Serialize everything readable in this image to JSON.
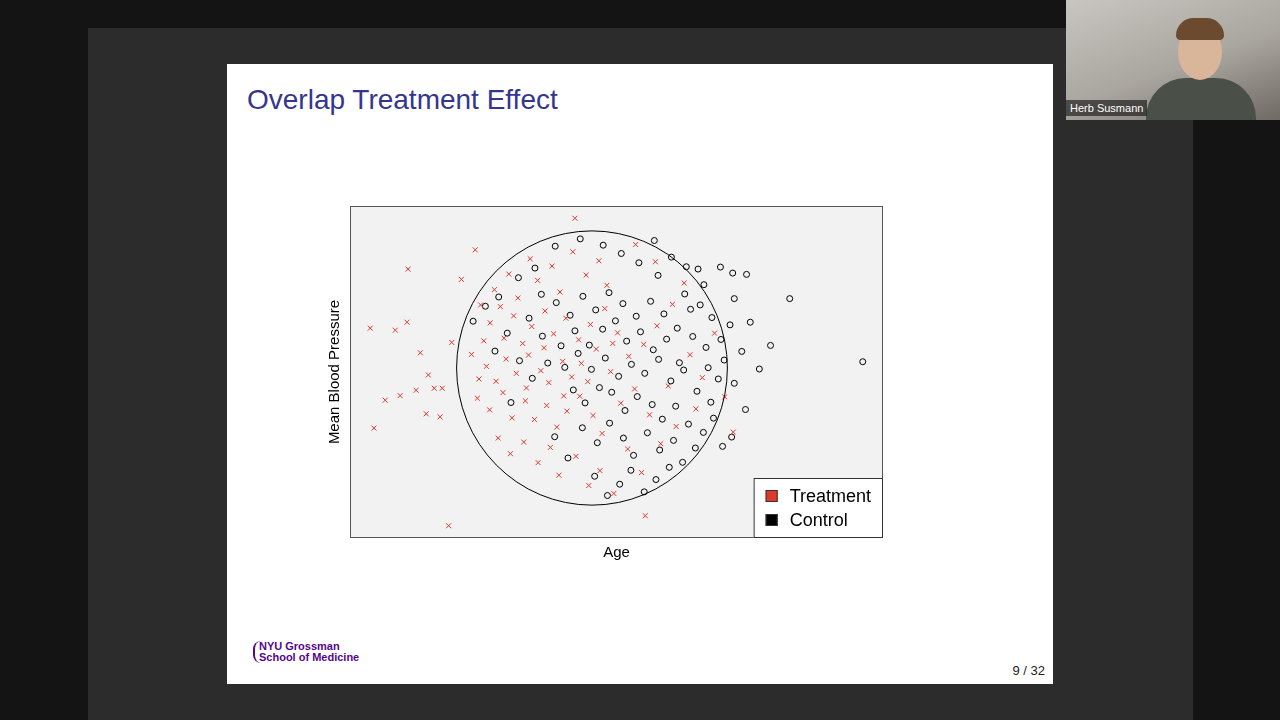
{
  "slide": {
    "title": "Overlap Treatment Effect",
    "page": "9 / 32",
    "logo": [
      "NYU Grossman",
      "School of Medicine"
    ]
  },
  "presenter": {
    "name": "Herb Susmann"
  },
  "chart_data": {
    "type": "scatter",
    "x_label": "Age",
    "y_label": "Mean Blood Pressure",
    "xlim": [
      0,
      100
    ],
    "ylim": [
      0,
      100
    ],
    "tick_labels": false,
    "grid": false,
    "legend": "bottom right",
    "overlap_region": {
      "center": [
        45.4,
        51.2
      ],
      "x_radius": 25.4,
      "y_radius": 41.3
    },
    "series": [
      {
        "name": "Treatment",
        "color": "#e0382b",
        "marker": "x",
        "x": [
          3.8,
          10.9,
          23.5,
          42.2,
          4.5,
          18.5,
          55.4,
          9.4,
          12.4,
          14.3,
          15.8,
          10.7,
          16.9,
          8.5,
          20.9,
          14.7,
          17.3,
          6.6,
          13.2,
          19.1,
          24.5,
          27.1,
          29.8,
          31.5,
          33.8,
          35.2,
          37.9,
          39.4,
          41.8,
          44.3,
          46.7,
          48.2,
          26.3,
          28.9,
          30.7,
          32.4,
          34.1,
          36.6,
          38.2,
          40.5,
          42.9,
          45.1,
          47.8,
          50.2,
          22.8,
          25.6,
          27.4,
          29.3,
          31.2,
          33.5,
          35.8,
          37.3,
          39.9,
          41.6,
          43.4,
          46.2,
          48.9,
          52.3,
          55.1,
          57.6,
          23.9,
          26.2,
          28.7,
          30.4,
          32.9,
          34.6,
          36.9,
          38.8,
          40.7,
          43.1,
          45.6,
          47.3,
          50.8,
          53.4,
          56.2,
          59.7,
          27.8,
          30.1,
          32.6,
          35.3,
          37.6,
          39.2,
          42.4,
          44.8,
          46.9,
          49.5,
          52.1,
          54.7,
          58.3,
          61.2,
          63.8,
          66.1,
          68.4,
          64.9,
          60.5,
          62.7,
          57.3,
          53.6,
          71.9,
          70.3,
          25.1,
          28.2,
          33.1,
          36.4,
          40.1,
          44.6,
          49.3,
          24.2
        ],
        "values": [
          63.2,
          81,
          86.8,
          96.3,
          33.1,
          3.7,
          6.7,
          42.9,
          44.5,
          37.4,
          45.1,
          65,
          36.5,
          62.6,
          77.9,
          49.1,
          45.1,
          41.5,
          55.8,
          58.9,
          70.2,
          74.8,
          79.5,
          72.3,
          84.1,
          77.6,
          81.9,
          74.1,
          86.2,
          79.2,
          83.5,
          76.1,
          64.8,
          60.2,
          66.9,
          58.6,
          63.7,
          68.4,
          61.5,
          66.2,
          59.7,
          64.3,
          69.1,
          61.8,
          55.3,
          51.7,
          47.2,
          53.9,
          49.6,
          55.1,
          50.4,
          46.8,
          53.2,
          48.5,
          52.6,
          56.9,
          50.1,
          54.7,
          58.3,
          63.9,
          42.1,
          38.6,
          43.8,
          36.2,
          41.3,
          35.7,
          39.9,
          33.4,
          38.2,
          42.7,
          36.9,
          31.5,
          40.6,
          44.9,
          37.1,
          45.8,
          30.1,
          25.4,
          28.9,
          22.7,
          27.3,
          18.9,
          24.6,
          15.8,
          20.3,
          13.4,
          26.8,
          19.7,
          28.4,
          33.6,
          55.2,
          48.3,
          61.7,
          38.9,
          70.4,
          76.8,
          83.2,
          88.4,
          31.9,
          42.5,
          59.4,
          69.7,
          45.2,
          57.3,
          42.8,
          47.1,
          58.6,
          47.9
        ]
      },
      {
        "name": "Control",
        "color": "#000000",
        "marker": "circle",
        "x": [
          57.1,
          69.5,
          71.8,
          74.4,
          82.5,
          78.9,
          76.8,
          96.2,
          72.1,
          75.1,
          65.3,
          71.6,
          69.9,
          72.1,
          73.5,
          74.2,
          23.1,
          25.4,
          27.9,
          31.6,
          34.7,
          38.5,
          43.2,
          47.5,
          50.9,
          54.2,
          57.8,
          60.3,
          62.8,
          65.7,
          67.9,
          69.6,
          38.7,
          41.3,
          43.7,
          46.1,
          48.6,
          51.2,
          53.7,
          56.4,
          58.9,
          61.4,
          63.9,
          66.8,
          36.1,
          39.6,
          42.2,
          44.9,
          47.4,
          49.8,
          51.9,
          54.5,
          56.9,
          59.4,
          61.8,
          64.3,
          67.2,
          69.1,
          40.3,
          42.8,
          45.3,
          47.9,
          50.4,
          52.8,
          55.3,
          57.9,
          60.2,
          62.6,
          65.1,
          67.7,
          41.9,
          44.1,
          46.8,
          49.1,
          51.6,
          53.9,
          56.7,
          58.6,
          61.1,
          63.5,
          66.3,
          68.2,
          43.6,
          46.4,
          48.7,
          51.3,
          53.2,
          55.8,
          58.1,
          60.7,
          62.4,
          64.8,
          45.9,
          48.3,
          50.6,
          52.7,
          55.2,
          57.4,
          59.9,
          27.2,
          29.5,
          31.8,
          34.2,
          37.1,
          33.6,
          35.9,
          30.2,
          38.4,
          40.9,
          66.4,
          63.1,
          70.2,
          71.3
        ],
        "values": [
          89.6,
          81.6,
          79.8,
          79.4,
          72.1,
          58,
          50.9,
          53.1,
          72.1,
          65,
          81,
          30.4,
          27.6,
          46.6,
          56.2,
          38.7,
          65.3,
          69.8,
          72.6,
          78.4,
          81.3,
          87.9,
          90.1,
          88.2,
          85.7,
          82.9,
          79.1,
          84.6,
          73.5,
          70.2,
          66.4,
          59.8,
          70.9,
          67.1,
          72.8,
          68.7,
          73.9,
          70.6,
          66.8,
          71.3,
          67.5,
          63.2,
          68.9,
          57.4,
          60.8,
          57.9,
          62.4,
          58.1,
          62.9,
          65.4,
          59.3,
          62.1,
          56.7,
          59.9,
          52.8,
          60.7,
          51.3,
          47.9,
          51.4,
          55.6,
          50.8,
          54.2,
          48.7,
          52.3,
          49.6,
          53.8,
          47.3,
          50.6,
          44.2,
          40.9,
          44.6,
          40.7,
          45.3,
          43.9,
          38.4,
          42.6,
          40.2,
          35.8,
          39.7,
          34.3,
          31.8,
          36.1,
          33.2,
          28.7,
          34.6,
          30.1,
          24.9,
          31.7,
          26.5,
          29.4,
          22.8,
          27.1,
          18.6,
          12.8,
          16.2,
          20.4,
          13.9,
          17.6,
          21.3,
          56.3,
          61.7,
          53.4,
          48.1,
          52.7,
          66.2,
          73.4,
          40.8,
          30.5,
          24.1,
          76.3,
          81.7,
          53.6,
          64.2
        ]
      }
    ]
  }
}
